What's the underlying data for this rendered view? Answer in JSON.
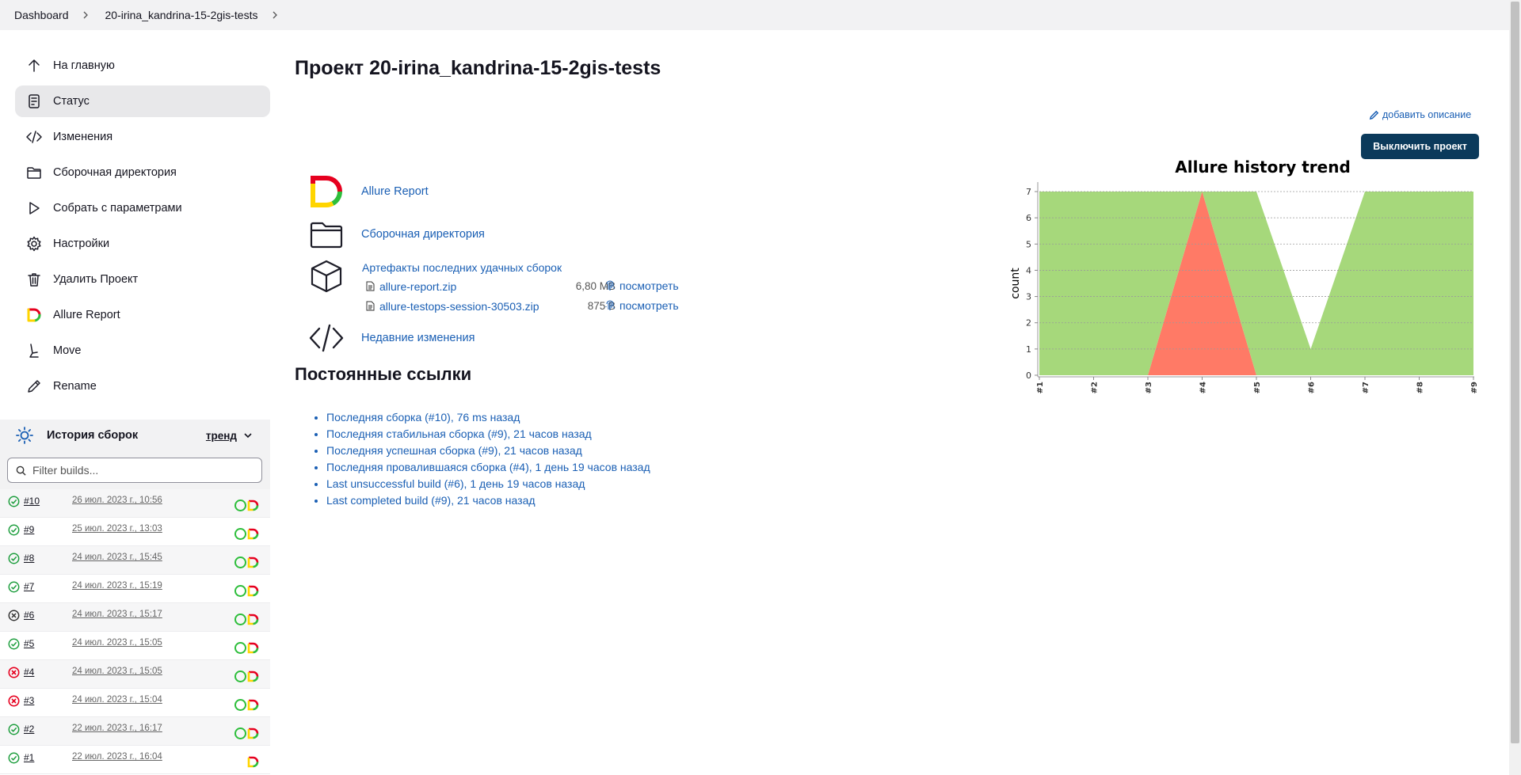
{
  "breadcrumb": {
    "items": [
      "Dashboard",
      "20-irina_kandrina-15-2gis-tests"
    ]
  },
  "sidebar": {
    "items": [
      {
        "label": "На главную",
        "icon": "arrow-up-icon"
      },
      {
        "label": "Статус",
        "icon": "document-icon",
        "active": true
      },
      {
        "label": "Изменения",
        "icon": "code-icon"
      },
      {
        "label": "Сборочная директория",
        "icon": "folder-icon"
      },
      {
        "label": "Собрать с параметрами",
        "icon": "play-icon"
      },
      {
        "label": "Настройки",
        "icon": "gear-icon"
      },
      {
        "label": "Удалить Проект",
        "icon": "trash-icon"
      },
      {
        "label": "Allure Report",
        "icon": "allure-icon"
      },
      {
        "label": "Move",
        "icon": "move-icon"
      },
      {
        "label": "Rename",
        "icon": "pencil-icon"
      }
    ]
  },
  "history": {
    "title": "История сборок",
    "trend_label": "тренд",
    "filter_placeholder": "Filter builds...",
    "builds": [
      {
        "num": "#10",
        "date": "26 июл. 2023 г., 10:56",
        "status": "success",
        "ring": true
      },
      {
        "num": "#9",
        "date": "25 июл. 2023 г., 13:03",
        "status": "success",
        "ring": true
      },
      {
        "num": "#8",
        "date": "24 июл. 2023 г., 15:45",
        "status": "success",
        "ring": true
      },
      {
        "num": "#7",
        "date": "24 июл. 2023 г., 15:19",
        "status": "success",
        "ring": true
      },
      {
        "num": "#6",
        "date": "24 июл. 2023 г., 15:17",
        "status": "aborted",
        "ring": true
      },
      {
        "num": "#5",
        "date": "24 июл. 2023 г., 15:05",
        "status": "success",
        "ring": true
      },
      {
        "num": "#4",
        "date": "24 июл. 2023 г., 15:05",
        "status": "failed",
        "ring": true
      },
      {
        "num": "#3",
        "date": "24 июл. 2023 г., 15:04",
        "status": "failed",
        "ring": true
      },
      {
        "num": "#2",
        "date": "22 июл. 2023 г., 16:17",
        "status": "success",
        "ring": true
      },
      {
        "num": "#1",
        "date": "22 июл. 2023 г., 16:04",
        "status": "success",
        "ring": false
      }
    ]
  },
  "main": {
    "title": "Проект 20-irina_kandrina-15-2gis-tests",
    "add_description": "добавить описание",
    "disable_button": "Выключить проект",
    "links": {
      "allure": "Allure Report",
      "workspace": "Сборочная директория",
      "changes": "Недавние изменения"
    },
    "artifacts": {
      "title": "Артефакты последних удачных сборок",
      "view_label": "посмотреть",
      "files": [
        {
          "name": "allure-report.zip",
          "size": "6,80 MB"
        },
        {
          "name": "allure-testops-session-30503.zip",
          "size": "875 B"
        }
      ]
    },
    "permalinks_title": "Постоянные ссылки",
    "permalinks": [
      "Последняя сборка (#10), 76 ms назад",
      "Последняя стабильная сборка (#9), 21 часов назад",
      "Последняя успешная сборка (#9), 21 часов назад",
      "Последняя провалившаяся сборка (#4), 1 день 19 часов назад",
      "Last unsuccessful build (#6), 1 день 19 часов назад",
      "Last completed build (#9), 21 часов назад"
    ]
  },
  "chart_data": {
    "type": "area",
    "title": "Allure history trend",
    "ylabel": "count",
    "xlabel": "",
    "categories": [
      "#1",
      "#2",
      "#3",
      "#4",
      "#5",
      "#6",
      "#7",
      "#8",
      "#9"
    ],
    "ylim": [
      0,
      7
    ],
    "yticks": [
      0,
      1,
      2,
      3,
      4,
      5,
      6,
      7
    ],
    "series": [
      {
        "name": "",
        "color": "#ff7a66",
        "values": [
          0,
          0,
          0,
          7,
          0,
          0,
          0,
          0,
          0
        ]
      },
      {
        "name": "",
        "color": "#a6d87b",
        "values": [
          7,
          7,
          7,
          0,
          7,
          1,
          7,
          7,
          7
        ]
      }
    ],
    "grid": true
  },
  "colors": {
    "accent": "#1a5fb4",
    "button": "#0b3a5b",
    "success": "#2dbe3b",
    "failed": "#e6001f"
  }
}
